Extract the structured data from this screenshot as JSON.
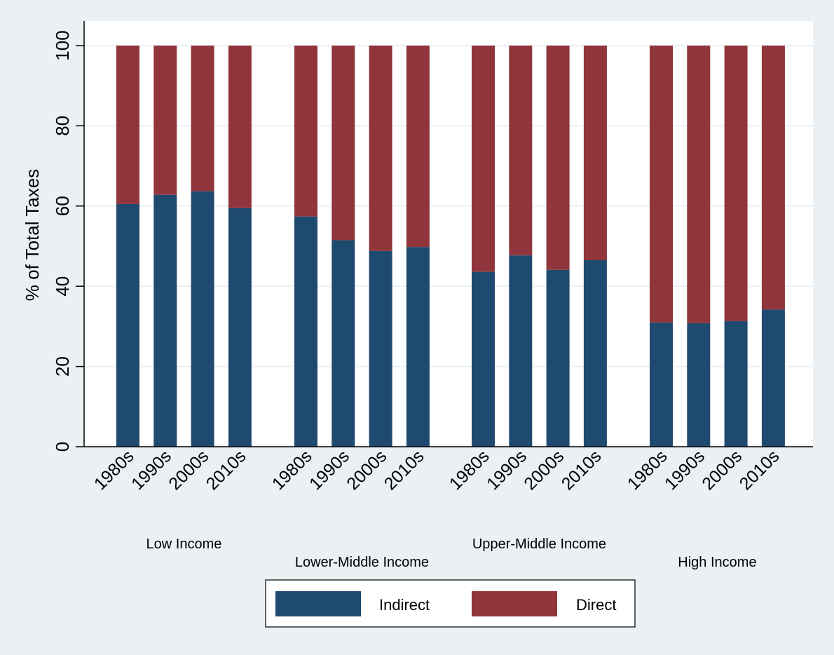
{
  "chart_data": {
    "type": "bar",
    "stacked": true,
    "ylabel": "% of Total Taxes",
    "ylim": [
      0,
      100
    ],
    "yticks": [
      0,
      20,
      40,
      60,
      80,
      100
    ],
    "grid": true,
    "legend_position": "bottom",
    "groups": [
      {
        "label": "Low Income",
        "categories": [
          "1980s",
          "1990s",
          "2000s",
          "2010s"
        ],
        "indirect": [
          60.5,
          62.8,
          63.7,
          59.5
        ],
        "direct": [
          39.5,
          37.2,
          36.3,
          40.5
        ]
      },
      {
        "label": "Lower-Middle Income",
        "categories": [
          "1980s",
          "1990s",
          "2000s",
          "2010s"
        ],
        "indirect": [
          57.4,
          51.5,
          48.8,
          49.8
        ],
        "direct": [
          42.6,
          48.5,
          51.2,
          50.2
        ]
      },
      {
        "label": "Upper-Middle Income",
        "categories": [
          "1980s",
          "1990s",
          "2000s",
          "2010s"
        ],
        "indirect": [
          43.6,
          47.7,
          44.1,
          46.5
        ],
        "direct": [
          56.4,
          52.3,
          55.9,
          53.5
        ]
      },
      {
        "label": "High Income",
        "categories": [
          "1980s",
          "1990s",
          "2000s",
          "2010s"
        ],
        "indirect": [
          31.0,
          30.8,
          31.3,
          34.2
        ],
        "direct": [
          69.0,
          69.2,
          68.7,
          65.8
        ]
      }
    ],
    "series": [
      {
        "name": "Indirect",
        "color": "#1f4a70"
      },
      {
        "name": "Direct",
        "color": "#90353b"
      }
    ]
  }
}
